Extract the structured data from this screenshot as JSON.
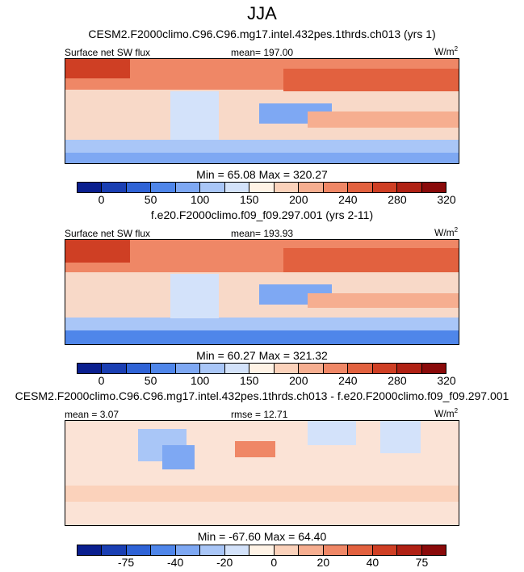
{
  "chart_data": [
    {
      "type": "heatmap",
      "page_title": "JJA",
      "title": "CESM2.F2000climo.C96.C96.mg17.intel.432pes.1thrds.ch013 (yrs 1)",
      "left_label": "Surface net SW flux",
      "center_label": "mean= 197.00",
      "units": "W/m",
      "units_sup": "2",
      "minmax": "Min =  65.08 Max = 320.27",
      "colorbar_ticks": [
        "0",
        "50",
        "100",
        "150",
        "200",
        "240",
        "280",
        "320"
      ],
      "colors": [
        "#0a1f8f",
        "#1a3fb3",
        "#2f63d6",
        "#4f86ea",
        "#7ea8f3",
        "#a9c6f7",
        "#d3e2fa",
        "#fff3e6",
        "#fbd2bb",
        "#f6ae90",
        "#ef8766",
        "#e2613f",
        "#cf3f24",
        "#b02114",
        "#8a0a0a"
      ]
    },
    {
      "type": "heatmap",
      "title": "f.e20.F2000climo.f09_f09.297.001 (yrs 2-11)",
      "left_label": "Surface net SW flux",
      "center_label": "mean= 193.93",
      "units": "W/m",
      "units_sup": "2",
      "minmax": "Min =  60.27 Max = 321.32",
      "colorbar_ticks": [
        "0",
        "50",
        "100",
        "150",
        "200",
        "240",
        "280",
        "320"
      ],
      "colors": [
        "#0a1f8f",
        "#1a3fb3",
        "#2f63d6",
        "#4f86ea",
        "#7ea8f3",
        "#a9c6f7",
        "#d3e2fa",
        "#fff3e6",
        "#fbd2bb",
        "#f6ae90",
        "#ef8766",
        "#e2613f",
        "#cf3f24",
        "#b02114",
        "#8a0a0a"
      ]
    },
    {
      "type": "heatmap",
      "title": "CESM2.F2000climo.C96.C96.mg17.intel.432pes.1thrds.ch013 - f.e20.F2000climo.f09_f09.297.001",
      "left_label": "mean =  3.07",
      "center_label": "rmse =  12.71",
      "units": "W/m",
      "units_sup": "2",
      "minmax": "Min = -67.60 Max =  64.40",
      "colorbar_ticks": [
        "-75",
        "-40",
        "-20",
        "0",
        "20",
        "40",
        "75"
      ],
      "colors": [
        "#0a1f8f",
        "#1a3fb3",
        "#2f63d6",
        "#4f86ea",
        "#7ea8f3",
        "#a9c6f7",
        "#d3e2fa",
        "#fff3e6",
        "#fbd2bb",
        "#f6ae90",
        "#ef8766",
        "#e2613f",
        "#cf3f24",
        "#b02114",
        "#8a0a0a"
      ]
    }
  ]
}
